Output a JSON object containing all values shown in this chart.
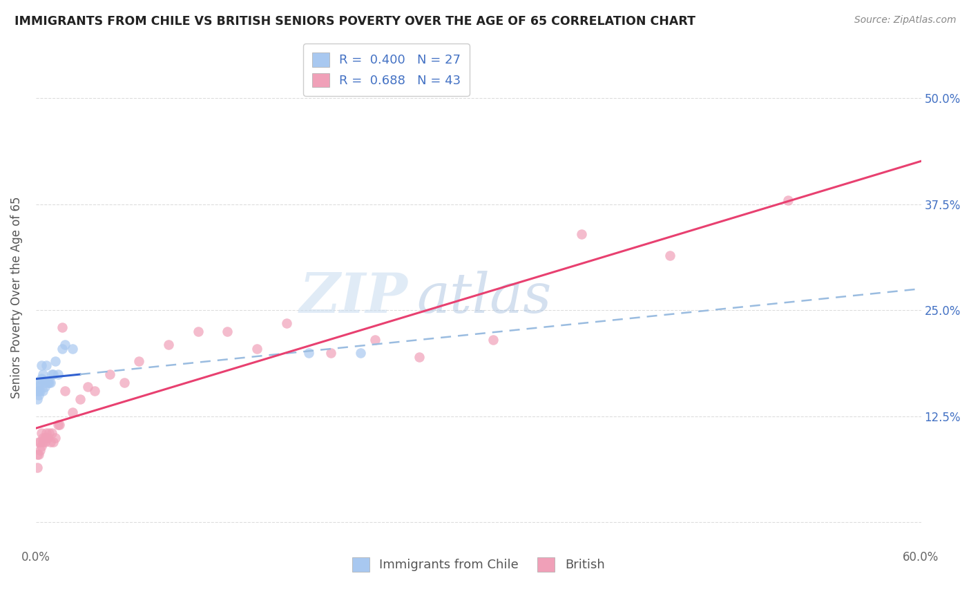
{
  "title": "IMMIGRANTS FROM CHILE VS BRITISH SENIORS POVERTY OVER THE AGE OF 65 CORRELATION CHART",
  "source_text": "Source: ZipAtlas.com",
  "ylabel": "Seniors Poverty Over the Age of 65",
  "xlim": [
    0.0,
    0.6
  ],
  "ylim": [
    -0.03,
    0.56
  ],
  "xticks": [
    0.0,
    0.1,
    0.2,
    0.3,
    0.4,
    0.5,
    0.6
  ],
  "xticklabels": [
    "0.0%",
    "",
    "",
    "",
    "",
    "",
    "60.0%"
  ],
  "yticks": [
    0.0,
    0.125,
    0.25,
    0.375,
    0.5
  ],
  "yticklabels": [
    "",
    "12.5%",
    "25.0%",
    "37.5%",
    "50.0%"
  ],
  "color_chile": "#A8C8F0",
  "color_british": "#F0A0B8",
  "line_color_chile_solid": "#3060D0",
  "line_color_chile_dash": "#9ABCE0",
  "line_color_british": "#E84070",
  "marker_size": 110,
  "watermark": "ZIPatlas",
  "chile_x": [
    0.001,
    0.001,
    0.001,
    0.002,
    0.002,
    0.002,
    0.003,
    0.003,
    0.004,
    0.004,
    0.005,
    0.005,
    0.006,
    0.006,
    0.007,
    0.008,
    0.009,
    0.01,
    0.011,
    0.012,
    0.013,
    0.015,
    0.018,
    0.02,
    0.025,
    0.185,
    0.22
  ],
  "chile_y": [
    0.145,
    0.155,
    0.16,
    0.15,
    0.155,
    0.165,
    0.155,
    0.165,
    0.17,
    0.185,
    0.155,
    0.175,
    0.16,
    0.165,
    0.185,
    0.165,
    0.165,
    0.165,
    0.175,
    0.175,
    0.19,
    0.175,
    0.205,
    0.21,
    0.205,
    0.2,
    0.2
  ],
  "british_x": [
    0.001,
    0.001,
    0.002,
    0.002,
    0.003,
    0.003,
    0.004,
    0.004,
    0.005,
    0.005,
    0.006,
    0.006,
    0.007,
    0.007,
    0.008,
    0.009,
    0.01,
    0.011,
    0.012,
    0.013,
    0.015,
    0.016,
    0.018,
    0.02,
    0.025,
    0.03,
    0.035,
    0.04,
    0.05,
    0.06,
    0.07,
    0.09,
    0.11,
    0.13,
    0.15,
    0.17,
    0.2,
    0.23,
    0.26,
    0.31,
    0.37,
    0.43,
    0.51
  ],
  "british_y": [
    0.065,
    0.08,
    0.08,
    0.095,
    0.085,
    0.095,
    0.09,
    0.105,
    0.095,
    0.1,
    0.095,
    0.1,
    0.1,
    0.105,
    0.1,
    0.105,
    0.095,
    0.105,
    0.095,
    0.1,
    0.115,
    0.115,
    0.23,
    0.155,
    0.13,
    0.145,
    0.16,
    0.155,
    0.175,
    0.165,
    0.19,
    0.21,
    0.225,
    0.225,
    0.205,
    0.235,
    0.2,
    0.215,
    0.195,
    0.215,
    0.34,
    0.315,
    0.38
  ]
}
